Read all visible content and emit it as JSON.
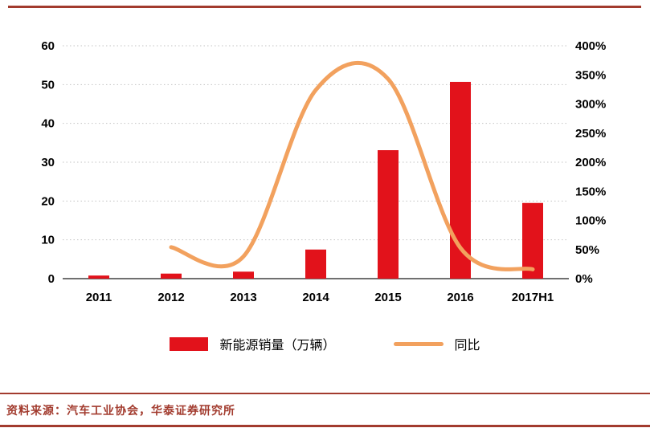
{
  "colors": {
    "dark_red": "#a23b2e",
    "bar_red": "#e2121b",
    "line_orange": "#f2a15e",
    "grid": "#c3c3c3",
    "axis": "#404040",
    "label": "#000000"
  },
  "legend": {
    "bar_label": "新能源销量（万辆）",
    "line_label": "同比"
  },
  "footer": {
    "source": "资料来源：汽车工业协会，华泰证券研究所"
  },
  "chart_data": {
    "type": "combo",
    "title": "",
    "categories": [
      "2011",
      "2012",
      "2013",
      "2014",
      "2015",
      "2016",
      "2017H1"
    ],
    "series": [
      {
        "name": "新能源销量（万辆）",
        "type": "bar",
        "axis": "left",
        "color": "#e2121b",
        "values": [
          0.8,
          1.3,
          1.8,
          7.5,
          33.1,
          50.7,
          19.5
        ]
      },
      {
        "name": "同比",
        "type": "line",
        "axis": "right",
        "color": "#f2a15e",
        "values": [
          null,
          54,
          38,
          324,
          343,
          53,
          16
        ]
      }
    ],
    "left_axis": {
      "min": 0,
      "max": 60,
      "step": 10,
      "ticks": [
        "0",
        "10",
        "20",
        "30",
        "40",
        "50",
        "60"
      ]
    },
    "right_axis": {
      "min": 0,
      "max": 400,
      "step": 50,
      "ticks": [
        "0%",
        "50%",
        "100%",
        "150%",
        "200%",
        "250%",
        "300%",
        "350%",
        "400%"
      ]
    },
    "grid": "dotted-horizontal",
    "legend_position": "bottom"
  }
}
